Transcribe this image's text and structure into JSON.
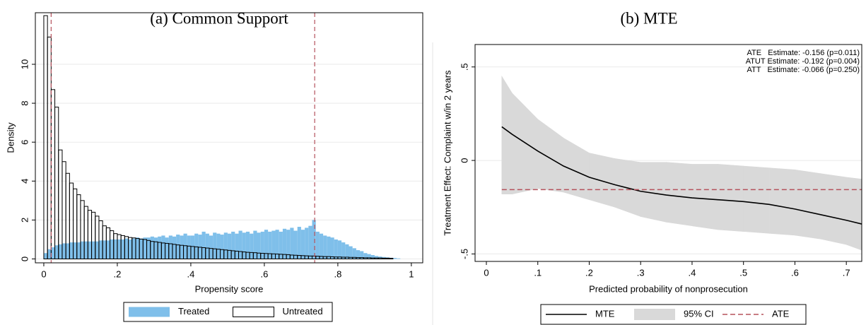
{
  "chart_data": [
    {
      "type": "histogram",
      "title": "(a) Common Support",
      "xlabel": "Propensity score",
      "ylabel": "Density",
      "bins": [
        0,
        0.01,
        0.02,
        0.03,
        0.04,
        0.05,
        0.06,
        0.07,
        0.08,
        0.09,
        0.1,
        0.11,
        0.12,
        0.13,
        0.14,
        0.15,
        0.16,
        0.17,
        0.18,
        0.19,
        0.2,
        0.21,
        0.22,
        0.23,
        0.24,
        0.25,
        0.26,
        0.27,
        0.28,
        0.29,
        0.3,
        0.31,
        0.32,
        0.33,
        0.34,
        0.35,
        0.36,
        0.37,
        0.38,
        0.39,
        0.4,
        0.41,
        0.42,
        0.43,
        0.44,
        0.45,
        0.46,
        0.47,
        0.48,
        0.49,
        0.5,
        0.51,
        0.52,
        0.53,
        0.54,
        0.55,
        0.56,
        0.57,
        0.58,
        0.59,
        0.6,
        0.61,
        0.62,
        0.63,
        0.64,
        0.65,
        0.66,
        0.67,
        0.68,
        0.69,
        0.7,
        0.71,
        0.72,
        0.73,
        0.74,
        0.75,
        0.76,
        0.77,
        0.78,
        0.79,
        0.8,
        0.81,
        0.82,
        0.83,
        0.84,
        0.85,
        0.86,
        0.87,
        0.88,
        0.89,
        0.9,
        0.91,
        0.92,
        0.93,
        0.94,
        0.95,
        0.96,
        0.97
      ],
      "series": [
        {
          "name": "Treated",
          "color": "#7fbfea",
          "filled": true,
          "values": [
            0.3,
            0.5,
            0.6,
            0.7,
            0.75,
            0.8,
            0.8,
            0.85,
            0.85,
            0.85,
            0.9,
            0.9,
            0.9,
            0.9,
            0.9,
            0.95,
            0.95,
            0.95,
            1.0,
            1.0,
            1.0,
            1.0,
            1.05,
            1.0,
            1.05,
            1.1,
            1.05,
            1.1,
            1.1,
            1.15,
            1.1,
            1.15,
            1.2,
            1.1,
            1.2,
            1.15,
            1.25,
            1.2,
            1.3,
            1.2,
            1.2,
            1.3,
            1.25,
            1.4,
            1.3,
            1.2,
            1.35,
            1.3,
            1.25,
            1.35,
            1.3,
            1.4,
            1.3,
            1.45,
            1.35,
            1.4,
            1.3,
            1.45,
            1.35,
            1.4,
            1.5,
            1.4,
            1.45,
            1.5,
            1.4,
            1.55,
            1.5,
            1.6,
            1.45,
            1.65,
            1.5,
            1.6,
            1.7,
            2.0,
            1.4,
            1.3,
            1.2,
            1.15,
            1.1,
            1.0,
            0.95,
            0.85,
            0.75,
            0.65,
            0.55,
            0.45,
            0.4,
            0.3,
            0.25,
            0.2,
            0.15,
            0.12,
            0.1,
            0.08,
            0.06,
            0.05,
            0.03
          ]
        },
        {
          "name": "Untreated",
          "color": "#000000",
          "filled": false,
          "values": [
            12.5,
            11.4,
            8.7,
            7.8,
            5.6,
            5.0,
            4.4,
            3.9,
            3.6,
            3.3,
            3.0,
            2.7,
            2.5,
            2.4,
            2.2,
            1.96,
            1.7,
            1.6,
            1.45,
            1.3,
            1.25,
            1.2,
            1.15,
            1.1,
            1.08,
            1.05,
            1.02,
            1.0,
            0.95,
            0.9,
            0.88,
            0.85,
            0.82,
            0.8,
            0.78,
            0.75,
            0.72,
            0.7,
            0.68,
            0.66,
            0.64,
            0.62,
            0.6,
            0.58,
            0.56,
            0.54,
            0.52,
            0.5,
            0.48,
            0.46,
            0.44,
            0.42,
            0.4,
            0.38,
            0.36,
            0.34,
            0.33,
            0.32,
            0.3,
            0.29,
            0.28,
            0.27,
            0.26,
            0.25,
            0.24,
            0.23,
            0.22,
            0.2,
            0.19,
            0.18,
            0.17,
            0.16,
            0.15,
            0.15,
            0.14,
            0.13,
            0.12,
            0.12,
            0.11,
            0.1,
            0.1,
            0.09,
            0.09,
            0.08,
            0.08,
            0.07,
            0.07,
            0.06,
            0.06,
            0.05,
            0.05,
            0.05,
            0.04,
            0.04,
            0.03,
            0,
            0
          ]
        }
      ],
      "vlines": [
        0.02,
        0.737
      ],
      "vline_color": "#b5525c",
      "xlim": [
        -0.023,
        1.031
      ],
      "xticks": [
        0,
        {
          "value": 0.2,
          "label": ".2"
        },
        {
          "value": 0.4,
          "label": ".4"
        },
        {
          "value": 0.6,
          "label": ".6"
        },
        {
          "value": 0.8,
          "label": ".8"
        },
        1
      ],
      "ylim": [
        -0.2,
        12.65
      ],
      "yticks": [
        0,
        2,
        4,
        6,
        8,
        10
      ],
      "grid": true,
      "legend_position": "bottom"
    },
    {
      "type": "line",
      "title": "(b) MTE",
      "xlabel": "Predicted probability of nonprosecution",
      "ylabel": "Treatment Effect: Complaint w/in 2 years",
      "annotations": [
        "ATE   Estimate: -0.156 (p=0.011)",
        "ATUT Estimate: -0.192 (p=0.004)",
        "ATT   Estimate: -0.066 (p=0.250)"
      ],
      "x": [
        0.03,
        0.05,
        0.1,
        0.15,
        0.2,
        0.25,
        0.3,
        0.35,
        0.4,
        0.45,
        0.5,
        0.55,
        0.6,
        0.65,
        0.7,
        0.73
      ],
      "series": [
        {
          "name": "MTE",
          "color": "#000000",
          "values": [
            0.18,
            0.14,
            0.05,
            -0.03,
            -0.09,
            -0.13,
            -0.165,
            -0.185,
            -0.2,
            -0.21,
            -0.22,
            -0.235,
            -0.26,
            -0.29,
            -0.32,
            -0.34
          ]
        },
        {
          "name": "95% CI",
          "color": "#d9d9d9",
          "upper": [
            0.45,
            0.36,
            0.22,
            0.12,
            0.04,
            0.01,
            -0.01,
            -0.01,
            -0.02,
            -0.02,
            -0.03,
            -0.04,
            -0.05,
            -0.07,
            -0.09,
            -0.1
          ],
          "lower": [
            -0.18,
            -0.18,
            -0.15,
            -0.17,
            -0.21,
            -0.25,
            -0.3,
            -0.33,
            -0.35,
            -0.37,
            -0.38,
            -0.39,
            -0.4,
            -0.42,
            -0.45,
            -0.48
          ]
        },
        {
          "name": "ATE",
          "color": "#b5525c",
          "dashed": true,
          "value": -0.156
        }
      ],
      "xlim": [
        -0.022,
        0.73
      ],
      "xticks": [
        0,
        {
          "value": 0.1,
          "label": ".1"
        },
        {
          "value": 0.2,
          "label": ".2"
        },
        {
          "value": 0.3,
          "label": ".3"
        },
        {
          "value": 0.4,
          "label": ".4"
        },
        {
          "value": 0.5,
          "label": ".5"
        },
        {
          "value": 0.6,
          "label": ".6"
        },
        {
          "value": 0.7,
          "label": ".7"
        }
      ],
      "ylim": [
        -0.54,
        0.62
      ],
      "yticks": [
        {
          "value": -0.5,
          "label": "-.5"
        },
        0,
        {
          "value": 0.5,
          "label": ".5"
        }
      ],
      "grid": true,
      "legend_position": "bottom"
    }
  ]
}
